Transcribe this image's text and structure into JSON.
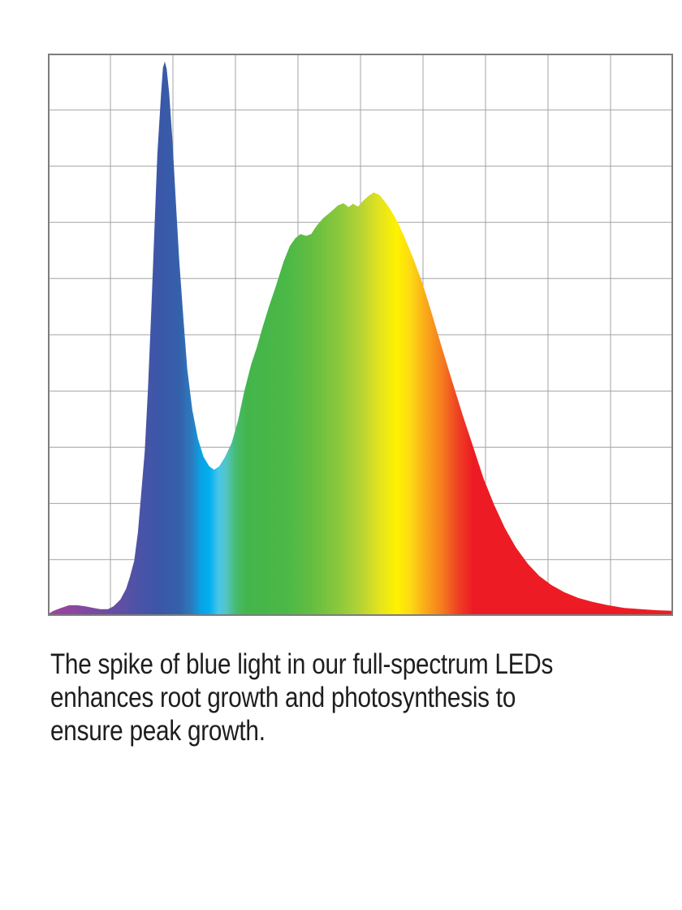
{
  "colors": {
    "background": "#ffffff",
    "text": "#1e1e1e",
    "grid_line": "#a3a3a3",
    "plot_border": "#7d7d7d"
  },
  "caption": {
    "lines": [
      "The spike of blue light in our full-spectrum LEDs",
      "enhances root growth and photosynthesis to",
      "ensure peak growth."
    ]
  },
  "chart_data": {
    "type": "area",
    "title": "",
    "xlabel": "",
    "ylabel": "",
    "axes_labeled": false,
    "x_unit": "percent-of-x-axis (no tick labels shown)",
    "y_unit": "percent-of-max-intensity (no tick labels shown)",
    "xlim": [
      0,
      100
    ],
    "ylim": [
      0,
      100
    ],
    "grid": {
      "columns": 10,
      "rows": 10,
      "visible": true
    },
    "legend": "none",
    "features": {
      "violet_bump_x_pct": 3.4,
      "blue_spike_peak": [
        18.7,
        98.6
      ],
      "valley": [
        26.6,
        26.0
      ],
      "broad_peak": [
        52.1,
        75.3
      ],
      "red_tail_end": [
        100,
        0.9
      ]
    },
    "gradient_stops": [
      {
        "offset": 0,
        "color": "#a0439b"
      },
      {
        "offset": 4,
        "color": "#8d479f"
      },
      {
        "offset": 10,
        "color": "#6a4da1"
      },
      {
        "offset": 14.5,
        "color": "#4b53a7"
      },
      {
        "offset": 18,
        "color": "#3a57a8"
      },
      {
        "offset": 21,
        "color": "#3560ab"
      },
      {
        "offset": 23,
        "color": "#2b7bbf"
      },
      {
        "offset": 24.5,
        "color": "#09a3e4"
      },
      {
        "offset": 25.8,
        "color": "#00aeef"
      },
      {
        "offset": 27.3,
        "color": "#49c5e9"
      },
      {
        "offset": 28.6,
        "color": "#52c5c0"
      },
      {
        "offset": 30,
        "color": "#47bb71"
      },
      {
        "offset": 31.8,
        "color": "#43b54b"
      },
      {
        "offset": 38,
        "color": "#4ab847"
      },
      {
        "offset": 42,
        "color": "#62bd42"
      },
      {
        "offset": 46.5,
        "color": "#8ac83d"
      },
      {
        "offset": 50,
        "color": "#b5d334"
      },
      {
        "offset": 53,
        "color": "#e3e31f"
      },
      {
        "offset": 55.8,
        "color": "#fef200"
      },
      {
        "offset": 58,
        "color": "#fdd914"
      },
      {
        "offset": 60.6,
        "color": "#faa61a"
      },
      {
        "offset": 63,
        "color": "#f57d1e"
      },
      {
        "offset": 65.6,
        "color": "#ef4023"
      },
      {
        "offset": 68,
        "color": "#ed1c24"
      },
      {
        "offset": 100,
        "color": "#ed1c24"
      }
    ],
    "points": [
      [
        0,
        0.3
      ],
      [
        0.9,
        0.9
      ],
      [
        2.1,
        1.4
      ],
      [
        3.4,
        1.9
      ],
      [
        4.7,
        1.9
      ],
      [
        6.0,
        1.7
      ],
      [
        7.3,
        1.4
      ],
      [
        8.4,
        1.2
      ],
      [
        9.6,
        1.2
      ],
      [
        10.5,
        1.7
      ],
      [
        11.6,
        2.9
      ],
      [
        12.5,
        4.8
      ],
      [
        13.1,
        6.9
      ],
      [
        13.8,
        9.8
      ],
      [
        14.4,
        14.9
      ],
      [
        14.9,
        21.4
      ],
      [
        15.5,
        29.3
      ],
      [
        16.0,
        40.2
      ],
      [
        16.5,
        53.2
      ],
      [
        17.0,
        67.6
      ],
      [
        17.5,
        82.1
      ],
      [
        18.1,
        92.9
      ],
      [
        18.4,
        97.5
      ],
      [
        18.7,
        98.6
      ],
      [
        19.0,
        97.3
      ],
      [
        19.4,
        92.9
      ],
      [
        19.9,
        85.0
      ],
      [
        20.4,
        74.9
      ],
      [
        21.0,
        63.3
      ],
      [
        21.7,
        52.5
      ],
      [
        22.3,
        43.8
      ],
      [
        23.1,
        36.6
      ],
      [
        24.0,
        31.5
      ],
      [
        24.9,
        28.3
      ],
      [
        25.8,
        26.6
      ],
      [
        26.6,
        26.0
      ],
      [
        27.4,
        26.6
      ],
      [
        28.3,
        28.2
      ],
      [
        29.4,
        30.8
      ],
      [
        30.4,
        34.7
      ],
      [
        31.4,
        39.9
      ],
      [
        32.5,
        44.7
      ],
      [
        33.4,
        47.7
      ],
      [
        34.3,
        51.2
      ],
      [
        35.3,
        54.8
      ],
      [
        36.5,
        58.8
      ],
      [
        37.7,
        63.0
      ],
      [
        38.7,
        65.8
      ],
      [
        39.6,
        67.2
      ],
      [
        40.4,
        67.9
      ],
      [
        41.3,
        67.6
      ],
      [
        42.1,
        67.9
      ],
      [
        43.0,
        69.4
      ],
      [
        44.0,
        70.7
      ],
      [
        45.2,
        71.8
      ],
      [
        46.4,
        73.0
      ],
      [
        47.3,
        73.4
      ],
      [
        48.1,
        72.7
      ],
      [
        48.8,
        73.3
      ],
      [
        49.6,
        72.8
      ],
      [
        50.4,
        73.8
      ],
      [
        51.3,
        74.7
      ],
      [
        52.1,
        75.3
      ],
      [
        53.0,
        74.9
      ],
      [
        53.9,
        73.7
      ],
      [
        54.9,
        72.1
      ],
      [
        56.0,
        69.9
      ],
      [
        57.1,
        67.2
      ],
      [
        58.4,
        63.7
      ],
      [
        59.9,
        59.2
      ],
      [
        61.4,
        53.8
      ],
      [
        63.0,
        47.8
      ],
      [
        64.7,
        41.6
      ],
      [
        66.4,
        35.5
      ],
      [
        68.1,
        29.8
      ],
      [
        69.7,
        24.4
      ],
      [
        71.4,
        19.7
      ],
      [
        73.1,
        15.6
      ],
      [
        74.9,
        12.1
      ],
      [
        76.8,
        9.2
      ],
      [
        78.6,
        7.1
      ],
      [
        80.5,
        5.5
      ],
      [
        82.6,
        4.2
      ],
      [
        84.8,
        3.2
      ],
      [
        87.1,
        2.5
      ],
      [
        89.6,
        1.9
      ],
      [
        92.2,
        1.4
      ],
      [
        94.9,
        1.2
      ],
      [
        97.5,
        1.0
      ],
      [
        100,
        0.9
      ]
    ]
  }
}
